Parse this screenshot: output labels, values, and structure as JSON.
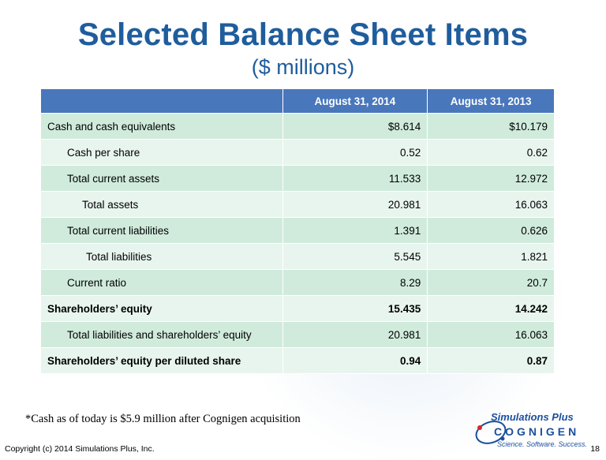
{
  "title": "Selected Balance Sheet Items",
  "subtitle": "($ millions)",
  "table": {
    "headers": [
      "",
      "August 31, 2014",
      "August 31, 2013"
    ],
    "rows": [
      {
        "label": "Cash and cash equivalents",
        "v2014": "$8.614",
        "v2013": "$10.179",
        "indent": 0,
        "bold": false
      },
      {
        "label": "Cash per share",
        "v2014": "0.52",
        "v2013": "0.62",
        "indent": 1,
        "bold": false
      },
      {
        "label": "Total current assets",
        "v2014": "11.533",
        "v2013": "12.972",
        "indent": 1,
        "bold": false
      },
      {
        "label": "Total assets",
        "v2014": "20.981",
        "v2013": "16.063",
        "indent": 2,
        "bold": false
      },
      {
        "label": "Total current liabilities",
        "v2014": "1.391",
        "v2013": "0.626",
        "indent": 1,
        "bold": false
      },
      {
        "label": "Total liabilities",
        "v2014": "5.545",
        "v2013": "1.821",
        "indent": 3,
        "bold": false
      },
      {
        "label": "Current ratio",
        "v2014": "8.29",
        "v2013": "20.7",
        "indent": 1,
        "bold": false
      },
      {
        "label": "Shareholders’ equity",
        "v2014": "15.435",
        "v2013": "14.242",
        "indent": 0,
        "bold": true
      },
      {
        "label": "Total liabilities and shareholders’ equity",
        "v2014": "20.981",
        "v2013": "16.063",
        "indent": 1,
        "bold": false
      },
      {
        "label": "Shareholders’ equity per diluted share",
        "v2014": "0.94",
        "v2013": "0.87",
        "indent": 0,
        "bold": true
      }
    ]
  },
  "footnote": "*Cash as of today is $5.9 million after Cognigen acquisition",
  "logo": {
    "line1": "Simulations Plus",
    "line2": "COGNIGEN",
    "tagline": "Science. Software. Success."
  },
  "copyright": "Copyright (c) 2014 Simulations Plus, Inc.",
  "page_number": "18",
  "colors": {
    "title": "#1f5d9c",
    "header_bg": "#4977bc",
    "row_dark": "#d0ebdc",
    "row_light": "#e8f5ee",
    "logo_blue": "#1b4f9c",
    "logo_red": "#d42a2a"
  }
}
